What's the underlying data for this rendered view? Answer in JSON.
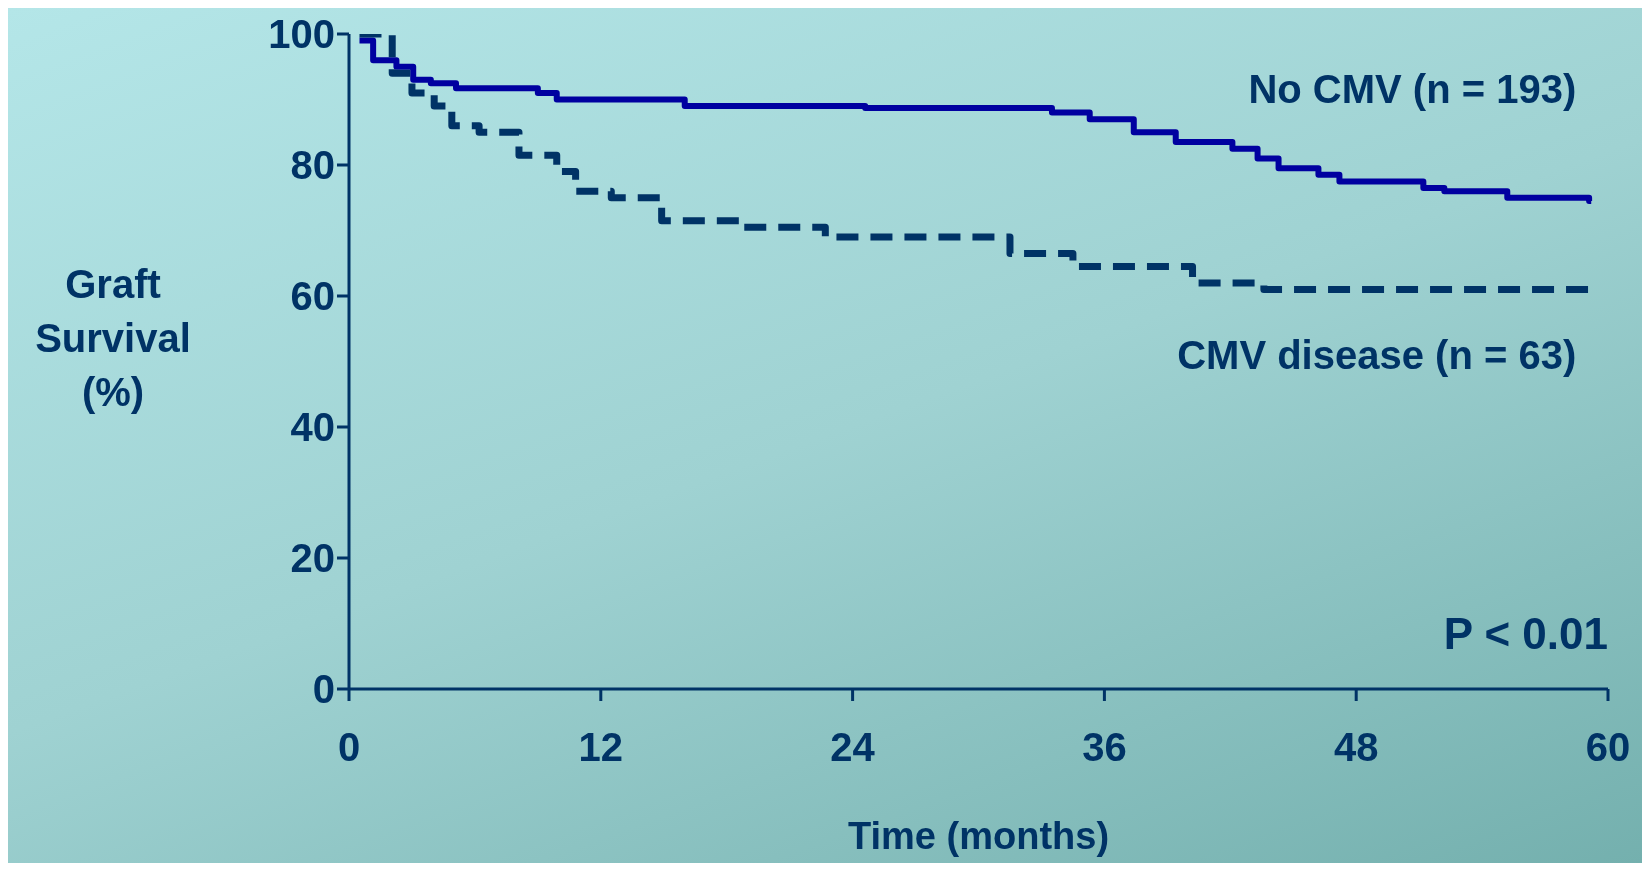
{
  "chart_data": {
    "type": "step",
    "xlabel": "Time (months)",
    "ylabel": "Graft Survival (%)",
    "xlim": [
      0,
      60
    ],
    "xticks": [
      0,
      12,
      24,
      36,
      48,
      60
    ],
    "ylim": [
      0,
      100
    ],
    "yticks": [
      0,
      20,
      40,
      60,
      80,
      100
    ],
    "marker": "none",
    "series": [
      {
        "name": "No CMV (n = 193)",
        "color": "#0000a0",
        "line_style": "solid",
        "x": [
          0.5,
          1.15,
          2.26,
          3.06,
          3.9,
          5.1,
          9.0,
          9.9,
          16,
          24.6,
          33.5,
          35.3,
          37.4,
          39.4,
          42.1,
          43.3,
          44.3,
          46.2,
          47.2,
          51.2,
          52.2,
          55.2,
          59.1,
          59.2
        ],
        "values": [
          99,
          96,
          95,
          93,
          92.5,
          91.7,
          91,
          90,
          89,
          88.7,
          88,
          87,
          85,
          83.5,
          82.5,
          81,
          79.5,
          78.5,
          77.5,
          76.5,
          76,
          75,
          74.5,
          74.5
        ]
      },
      {
        "name": "CMV disease (n = 63)",
        "color": "#003366",
        "line_style": "dashed",
        "x": [
          0.5,
          2.06,
          3.0,
          4.06,
          4.9,
          6.2,
          8.1,
          9.9,
          10.8,
          12.5,
          14.9,
          18.7,
          22.7,
          31.5,
          34.5,
          40.2,
          43.6,
          59.2
        ],
        "values": [
          100,
          94,
          91,
          89,
          86,
          85,
          81.5,
          79,
          76,
          75,
          71.5,
          70.5,
          69,
          66.5,
          64.5,
          62,
          61,
          61
        ]
      }
    ],
    "annotations": [
      "P < 0.01"
    ]
  }
}
